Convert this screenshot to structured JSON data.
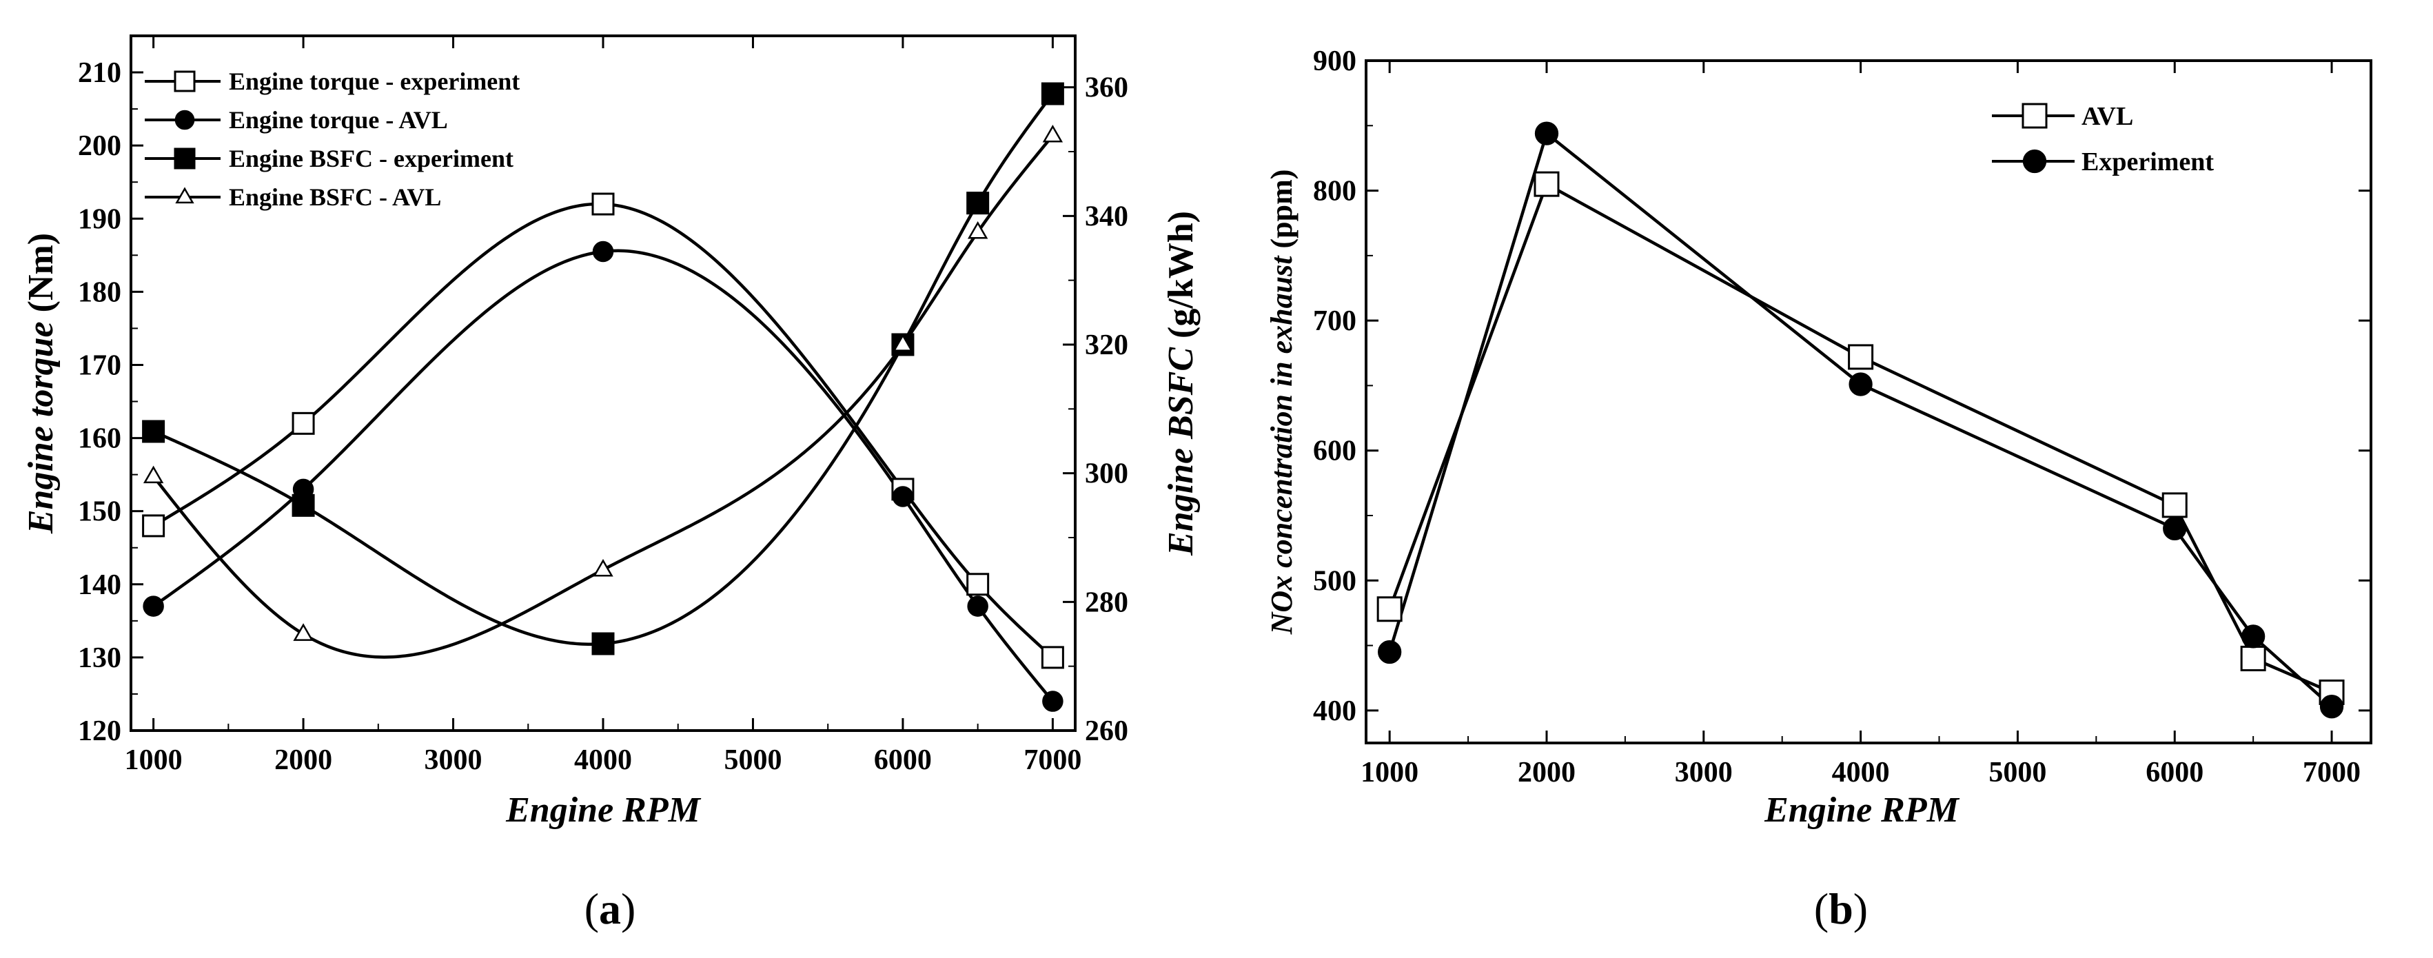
{
  "chart_data": [
    {
      "type": "line",
      "panel_label": "(a)",
      "panel_letter": "a",
      "xlabel": "Engine RPM",
      "ylabel": "Engine torque (Nm)",
      "ylabel_parts": {
        "italic": "Engine torque",
        "plain": " (Nm)"
      },
      "y2label": "Engine BSFC (g/kWh)",
      "y2label_parts": {
        "italic": "Engine BSFC",
        "plain": " (g/kWh)"
      },
      "xlim": [
        850,
        7150
      ],
      "ylim": [
        120,
        215
      ],
      "y2lim": [
        260,
        368
      ],
      "x_ticks": [
        1000,
        2000,
        3000,
        4000,
        5000,
        6000,
        7000
      ],
      "y_ticks": [
        120,
        130,
        140,
        150,
        160,
        170,
        180,
        190,
        200,
        210
      ],
      "y2_ticks": [
        260,
        280,
        300,
        320,
        340,
        360
      ],
      "grid": false,
      "legend_position": "top-left",
      "series": [
        {
          "name": "Engine torque - experiment",
          "axis": "left",
          "marker": "open-square",
          "x": [
            1000,
            2000,
            4000,
            6000,
            6500,
            7000
          ],
          "y": [
            148,
            162,
            192,
            153,
            140,
            130
          ]
        },
        {
          "name": "Engine torque - AVL",
          "axis": "left",
          "marker": "filled-circle",
          "x": [
            1000,
            2000,
            4000,
            6000,
            6500,
            7000
          ],
          "y": [
            137,
            153,
            185.5,
            152,
            137,
            124
          ]
        },
        {
          "name": "Engine BSFC - experiment",
          "axis": "right",
          "marker": "filled-square",
          "x": [
            1000,
            2000,
            4000,
            6000,
            6500,
            7000
          ],
          "y": [
            306.5,
            295,
            273.5,
            320,
            342,
            359
          ]
        },
        {
          "name": "Engine BSFC - AVL",
          "axis": "right",
          "marker": "open-triangle",
          "x": [
            1000,
            2000,
            4000,
            6000,
            6500,
            7000
          ],
          "y": [
            299.5,
            275,
            285,
            320,
            337.5,
            352.5
          ]
        }
      ]
    },
    {
      "type": "line",
      "panel_label": "(b)",
      "panel_letter": "b",
      "xlabel": "Engine RPM",
      "ylabel": "NOx concentration in exhaust (ppm)",
      "ylabel_parts": {
        "italic": "NOx concentration in exhaust",
        "plain": " (ppm)"
      },
      "xlim": [
        850,
        7250
      ],
      "ylim": [
        375,
        900
      ],
      "x_ticks": [
        1000,
        2000,
        3000,
        4000,
        5000,
        6000,
        7000
      ],
      "y_ticks": [
        400,
        500,
        600,
        700,
        800,
        900
      ],
      "grid": false,
      "legend_position": "top-right",
      "series": [
        {
          "name": "AVL",
          "marker": "open-square",
          "x": [
            1000,
            2000,
            4000,
            6000,
            6500,
            7000
          ],
          "y": [
            478,
            805,
            672,
            558,
            440,
            414
          ]
        },
        {
          "name": "Experiment",
          "marker": "filled-circle",
          "x": [
            1000,
            2000,
            4000,
            6000,
            6500,
            7000
          ],
          "y": [
            445,
            844,
            651,
            540,
            457,
            403
          ]
        }
      ]
    }
  ]
}
